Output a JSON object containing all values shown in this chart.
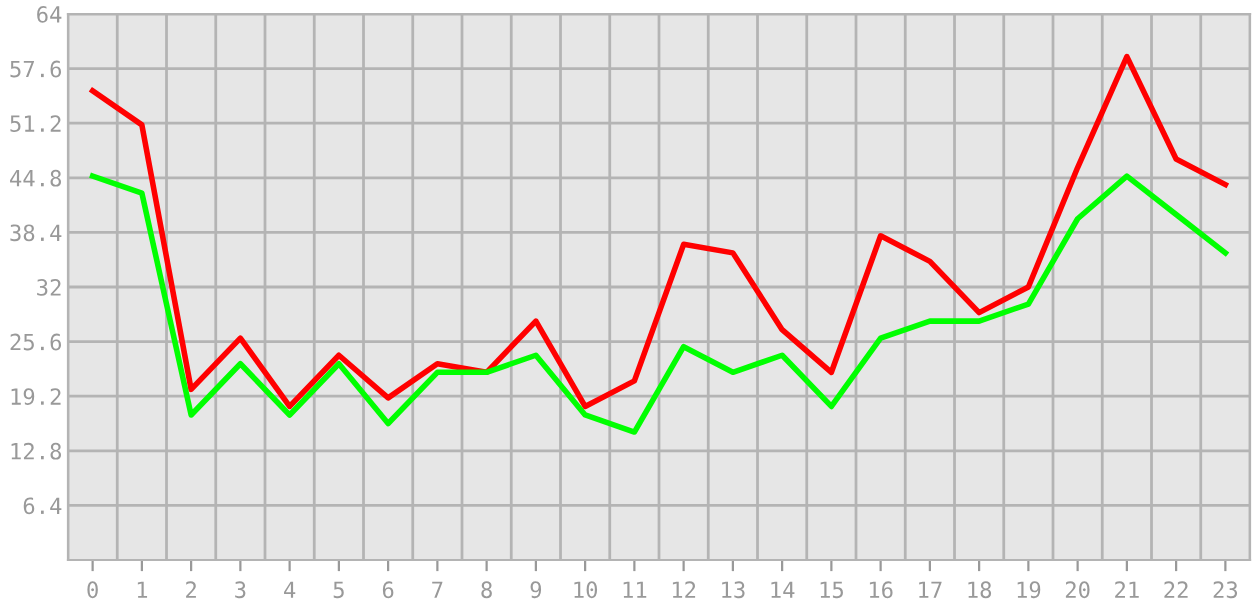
{
  "chart_data": {
    "type": "line",
    "categories": [
      "0",
      "1",
      "2",
      "3",
      "4",
      "5",
      "6",
      "7",
      "8",
      "9",
      "10",
      "11",
      "12",
      "13",
      "14",
      "15",
      "16",
      "17",
      "18",
      "19",
      "20",
      "21",
      "22",
      "23"
    ],
    "series": [
      {
        "color": "#ff0000",
        "values": [
          55,
          51,
          20,
          26,
          18,
          24,
          19,
          23,
          22,
          28,
          18,
          21,
          37,
          36,
          27,
          22,
          38,
          35,
          29,
          32,
          46,
          59,
          47,
          44
        ]
      },
      {
        "color": "#00ff00",
        "values": [
          45,
          43,
          17,
          23,
          17,
          23,
          16,
          22,
          22,
          24,
          17,
          15,
          25,
          22,
          24,
          18,
          26,
          28,
          28,
          30,
          40,
          45,
          40.5,
          36
        ]
      }
    ],
    "ylim": [
      0,
      64
    ],
    "yticks": [
      6.4,
      12.8,
      19.2,
      25.6,
      32,
      38.4,
      44.8,
      51.2,
      57.6,
      64
    ],
    "grid": true,
    "marker": "none",
    "line_style": "solid"
  }
}
